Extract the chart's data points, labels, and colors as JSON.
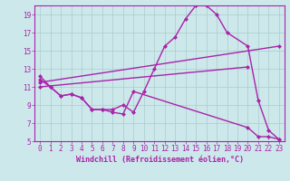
{
  "bg_color": "#cce8ea",
  "grid_color": "#aacccc",
  "line_color": "#aa22aa",
  "marker": "D",
  "markersize": 2.5,
  "linewidth": 1.0,
  "xlabel": "Windchill (Refroidissement éolien,°C)",
  "xlabel_fontsize": 6,
  "tick_fontsize": 5.5,
  "xlim": [
    -0.5,
    23.5
  ],
  "ylim": [
    5,
    20
  ],
  "yticks": [
    5,
    7,
    9,
    11,
    13,
    15,
    17,
    19
  ],
  "xticks": [
    0,
    1,
    2,
    3,
    4,
    5,
    6,
    7,
    8,
    9,
    10,
    11,
    12,
    13,
    14,
    15,
    16,
    17,
    18,
    19,
    20,
    21,
    22,
    23
  ],
  "lines": [
    {
      "x": [
        0,
        1,
        2,
        3,
        4,
        5,
        6,
        7,
        8,
        9,
        10,
        11,
        12,
        13,
        14,
        15,
        16,
        17,
        18,
        20,
        21,
        22,
        23
      ],
      "y": [
        12.2,
        11.0,
        10.0,
        10.2,
        9.8,
        8.5,
        8.5,
        8.5,
        9.0,
        8.2,
        10.5,
        13.0,
        15.5,
        16.5,
        18.5,
        20.0,
        20.0,
        19.0,
        17.0,
        15.5,
        9.5,
        6.2,
        5.2
      ]
    },
    {
      "x": [
        0,
        23
      ],
      "y": [
        11.5,
        15.5
      ]
    },
    {
      "x": [
        0,
        20
      ],
      "y": [
        11.0,
        13.2
      ]
    },
    {
      "x": [
        0,
        1,
        2,
        3,
        4,
        5,
        6,
        7,
        8,
        9,
        20,
        21,
        22,
        23
      ],
      "y": [
        11.8,
        11.0,
        10.0,
        10.2,
        9.8,
        8.5,
        8.5,
        8.2,
        8.0,
        10.5,
        6.5,
        5.5,
        5.5,
        5.2
      ]
    }
  ]
}
